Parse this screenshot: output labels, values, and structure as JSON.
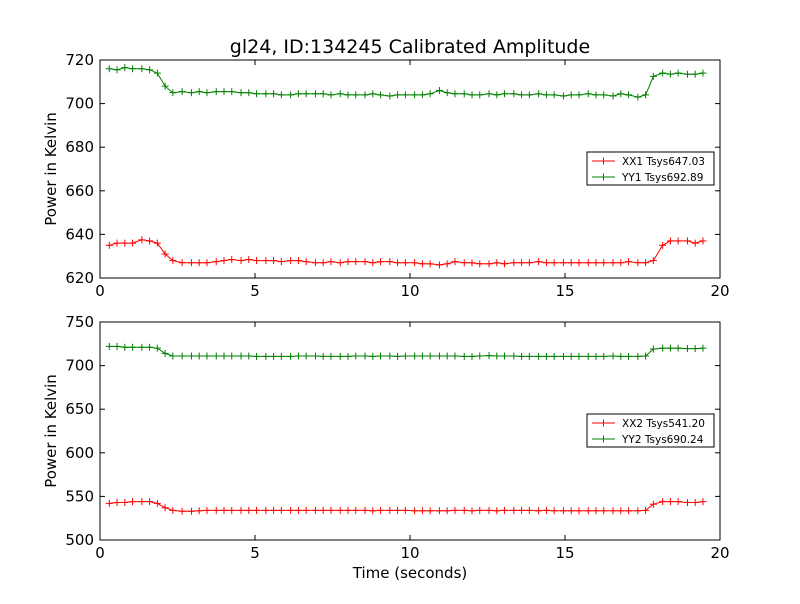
{
  "title": "gl24, ID:134245 Calibrated Amplitude",
  "xlabel": "Time (seconds)",
  "chart_data": [
    {
      "type": "line",
      "ylabel": "Power in Kelvin",
      "xlim": [
        0,
        20
      ],
      "ylim": [
        620,
        720
      ],
      "xticks": [
        "0",
        "5",
        "10",
        "15",
        "20"
      ],
      "yticks": [
        "620",
        "640",
        "660",
        "680",
        "700",
        "720"
      ],
      "legend_position": "right",
      "x": [
        0.3,
        0.55,
        0.8,
        1.05,
        1.35,
        1.6,
        1.85,
        2.1,
        2.35,
        2.65,
        2.95,
        3.2,
        3.45,
        3.75,
        4.0,
        4.25,
        4.55,
        4.8,
        5.05,
        5.35,
        5.6,
        5.85,
        6.15,
        6.4,
        6.65,
        6.95,
        7.2,
        7.45,
        7.75,
        8.0,
        8.25,
        8.55,
        8.8,
        9.05,
        9.35,
        9.6,
        9.85,
        10.15,
        10.4,
        10.65,
        10.95,
        11.2,
        11.45,
        11.75,
        12.0,
        12.25,
        12.55,
        12.8,
        13.05,
        13.35,
        13.6,
        13.85,
        14.15,
        14.4,
        14.65,
        14.95,
        15.2,
        15.45,
        15.75,
        16.0,
        16.25,
        16.55,
        16.8,
        17.05,
        17.35,
        17.6,
        17.85,
        18.15,
        18.4,
        18.65,
        18.95,
        19.2,
        19.45
      ],
      "series": [
        {
          "name": "XX1 Tsys647.03",
          "color": "#ff0000",
          "values": [
            635,
            636,
            636,
            636,
            637.5,
            637,
            636,
            631,
            628,
            627,
            627,
            627,
            627,
            627.5,
            628,
            628.5,
            628,
            628.5,
            628,
            628,
            628,
            627.5,
            628,
            628,
            627.5,
            627,
            627,
            627.5,
            627,
            627.5,
            627.5,
            627.5,
            627,
            627.5,
            627.5,
            627,
            627,
            627,
            626.5,
            626.5,
            626,
            626.5,
            627.5,
            627,
            627,
            626.5,
            626.5,
            627,
            626.5,
            627,
            627,
            627,
            627.5,
            627,
            627,
            627,
            627,
            627,
            627,
            627,
            627,
            627,
            627,
            627.5,
            627,
            627,
            628,
            635,
            637,
            637,
            637,
            636,
            637
          ]
        },
        {
          "name": "YY1 Tsys692.89",
          "color": "#008000",
          "values": [
            716,
            715.5,
            716.5,
            716,
            716,
            715.5,
            714,
            708,
            705,
            705.5,
            705,
            705.5,
            705,
            705.5,
            705.5,
            705.5,
            705,
            705,
            704.5,
            704.5,
            704.5,
            704,
            704,
            704.5,
            704.5,
            704.5,
            704.5,
            704,
            704.5,
            704,
            704,
            704,
            704.5,
            704,
            703.5,
            704,
            704,
            704,
            704,
            704.5,
            706,
            705,
            704.5,
            704.5,
            704,
            704,
            704.5,
            704,
            704.5,
            704.5,
            704,
            704,
            704.5,
            704,
            704,
            703.5,
            704,
            704,
            704.5,
            704,
            704,
            703.5,
            704.5,
            704,
            703,
            704,
            712.5,
            714,
            713.5,
            714,
            713.5,
            713.5,
            714
          ]
        }
      ]
    },
    {
      "type": "line",
      "ylabel": "Power in Kelvin",
      "xlim": [
        0,
        20
      ],
      "ylim": [
        500,
        750
      ],
      "xticks": [
        "0",
        "5",
        "10",
        "15",
        "20"
      ],
      "yticks": [
        "500",
        "550",
        "600",
        "650",
        "700",
        "750"
      ],
      "legend_position": "right",
      "x": [
        0.3,
        0.55,
        0.8,
        1.05,
        1.35,
        1.6,
        1.85,
        2.1,
        2.35,
        2.65,
        2.95,
        3.2,
        3.45,
        3.75,
        4.0,
        4.25,
        4.55,
        4.8,
        5.05,
        5.35,
        5.6,
        5.85,
        6.15,
        6.4,
        6.65,
        6.95,
        7.2,
        7.45,
        7.75,
        8.0,
        8.25,
        8.55,
        8.8,
        9.05,
        9.35,
        9.6,
        9.85,
        10.15,
        10.4,
        10.65,
        10.95,
        11.2,
        11.45,
        11.75,
        12.0,
        12.25,
        12.55,
        12.8,
        13.05,
        13.35,
        13.6,
        13.85,
        14.15,
        14.4,
        14.65,
        14.95,
        15.2,
        15.45,
        15.75,
        16.0,
        16.25,
        16.55,
        16.8,
        17.05,
        17.35,
        17.6,
        17.85,
        18.15,
        18.4,
        18.65,
        18.95,
        19.2,
        19.45
      ],
      "series": [
        {
          "name": "XX2 Tsys541.20",
          "color": "#ff0000",
          "values": [
            542,
            543,
            543,
            544,
            544,
            544,
            542,
            537,
            534,
            533,
            533,
            533.5,
            534,
            534,
            534,
            534,
            534,
            534,
            534,
            534,
            534,
            534,
            534,
            534,
            534,
            534,
            534,
            534,
            534,
            534,
            534,
            534,
            533.5,
            534,
            534,
            534,
            534,
            533.5,
            533.5,
            533.5,
            533.5,
            533.5,
            534,
            534,
            533.5,
            534,
            534,
            533.5,
            534,
            534,
            534,
            534,
            533.5,
            534,
            533.5,
            533.5,
            533.5,
            533.5,
            533.5,
            533.5,
            533.5,
            533.5,
            533.5,
            533.5,
            533.5,
            534,
            541,
            544,
            544,
            544,
            543,
            543,
            544
          ]
        },
        {
          "name": "YY2 Tsys690.24",
          "color": "#008000",
          "values": [
            722,
            722,
            721,
            721,
            721,
            721,
            720,
            714,
            711,
            711,
            711,
            711,
            711,
            711,
            711,
            711,
            711,
            711,
            710.5,
            710.5,
            710.5,
            710.5,
            710.5,
            711,
            711,
            711,
            710.5,
            710.5,
            710.5,
            710.5,
            711,
            711,
            710.5,
            711,
            711,
            710.5,
            711,
            711,
            711,
            711,
            711,
            711,
            711,
            710.5,
            710.5,
            711,
            711.5,
            711,
            711,
            711,
            710.5,
            710.5,
            710.5,
            710.5,
            710.5,
            710.5,
            710.5,
            710.5,
            710.5,
            710.5,
            710.5,
            711,
            710.5,
            710.5,
            710.5,
            711,
            719,
            720,
            720,
            720,
            719.5,
            719.5,
            720
          ]
        }
      ]
    }
  ]
}
